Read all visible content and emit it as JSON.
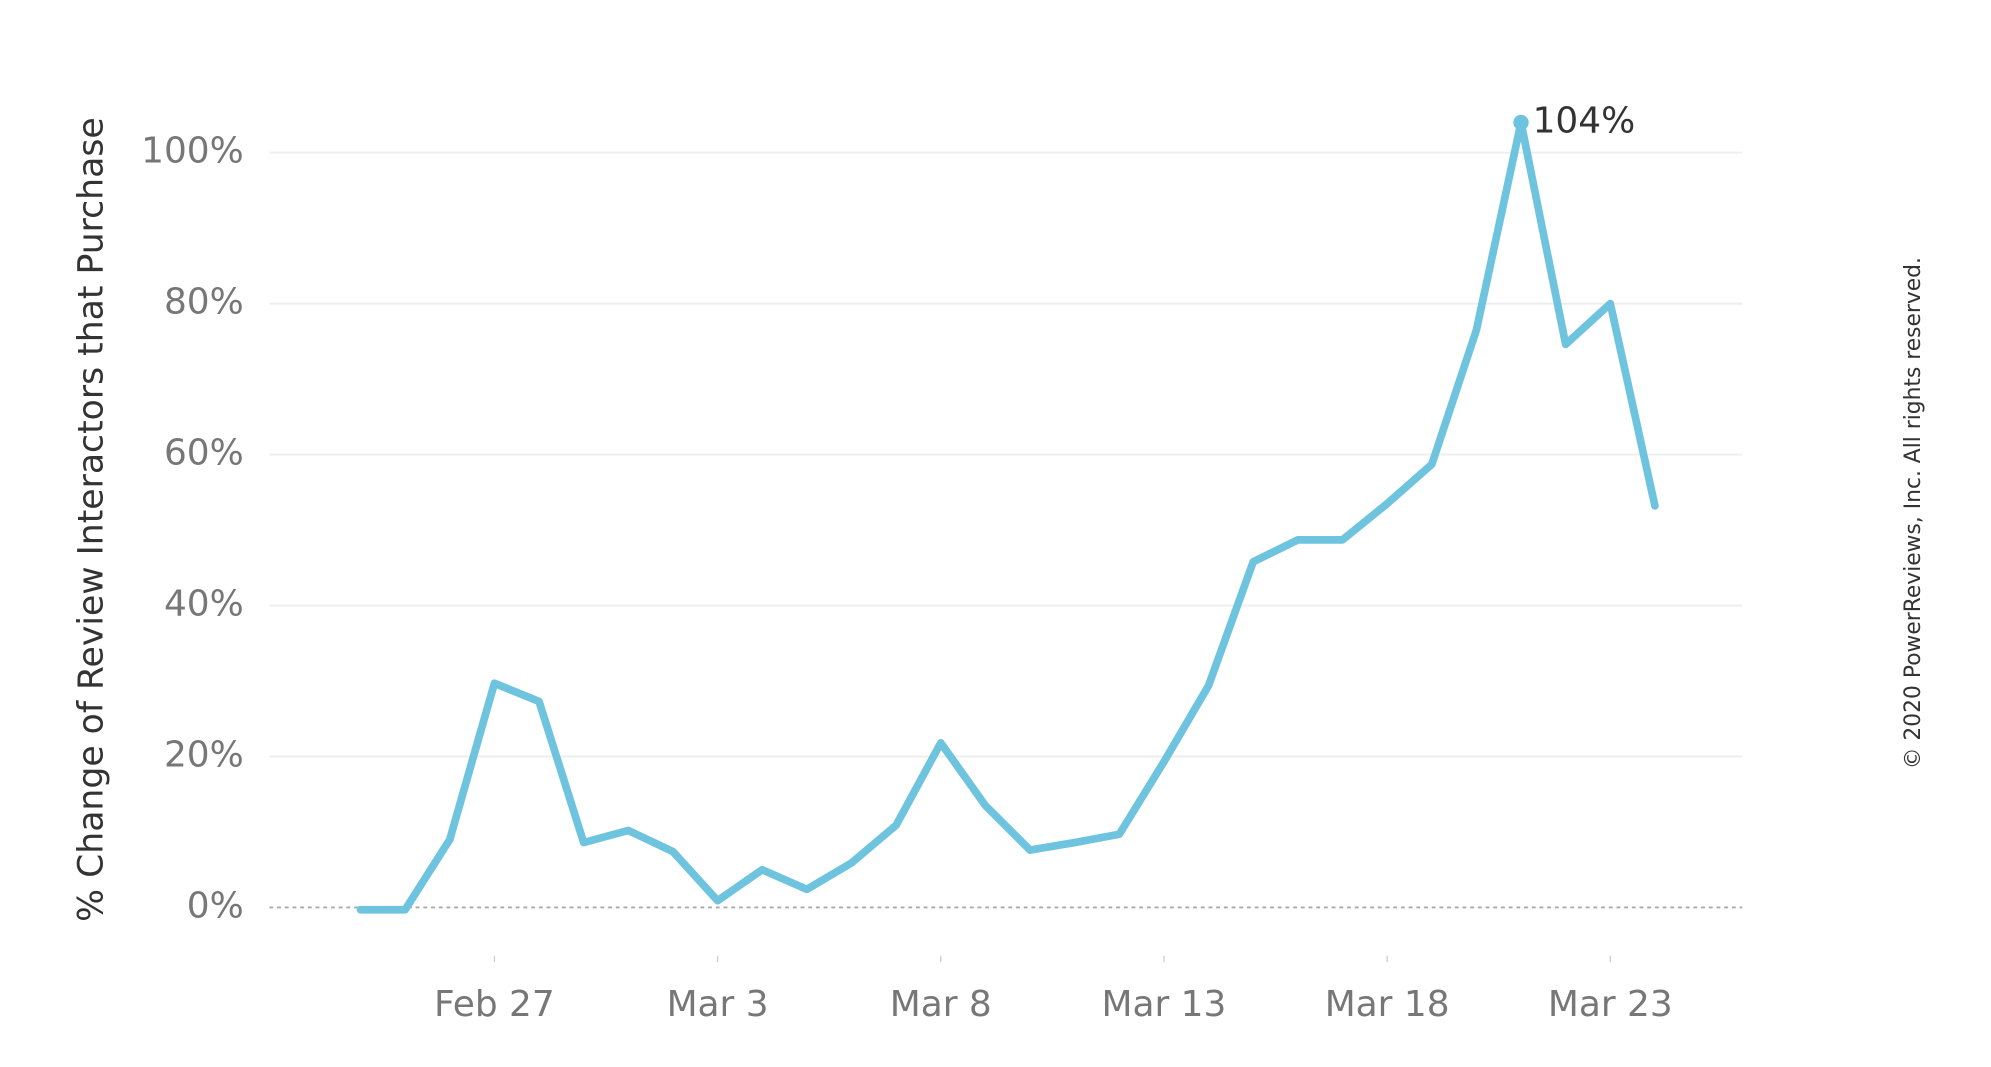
{
  "chart_data": {
    "type": "line",
    "ylabel": "% Change of Review Interactors that Purchase",
    "copyright": "© 2020 PowerReviews, Inc. All rights reserved.",
    "categories": [
      null,
      null,
      null,
      "Feb 27",
      null,
      null,
      null,
      null,
      "Mar 3",
      null,
      null,
      null,
      null,
      "Mar 8",
      null,
      null,
      null,
      null,
      "Mar 13",
      null,
      null,
      null,
      null,
      "Mar 18",
      null,
      null,
      null,
      null,
      "Mar 23",
      null
    ],
    "series": [
      {
        "color": "#6ec4de",
        "values": [
          -0.3,
          -0.3,
          9,
          29.7,
          27.3,
          8.6,
          10.2,
          7.4,
          0.9,
          5,
          2.4,
          5.9,
          10.9,
          21.8,
          13.5,
          7.6,
          8.6,
          9.7,
          19.3,
          29.4,
          45.8,
          48.7,
          48.7,
          53.5,
          58.7,
          76.5,
          104,
          74.6,
          80,
          53.2
        ],
        "value_labels": [
          null,
          null,
          null,
          null,
          null,
          null,
          null,
          null,
          null,
          null,
          null,
          null,
          null,
          null,
          null,
          null,
          null,
          null,
          null,
          null,
          null,
          null,
          null,
          null,
          null,
          null,
          "104%",
          null,
          null,
          null
        ]
      }
    ],
    "ylim": [
      -6.4,
      105
    ],
    "yticks": [
      {
        "value": 0,
        "label": "0%"
      },
      {
        "value": 20,
        "label": "20%"
      },
      {
        "value": 40,
        "label": "40%"
      },
      {
        "value": 60,
        "label": "60%"
      },
      {
        "value": 80,
        "label": "80%"
      },
      {
        "value": 100,
        "label": "100%"
      }
    ],
    "grid": true
  }
}
